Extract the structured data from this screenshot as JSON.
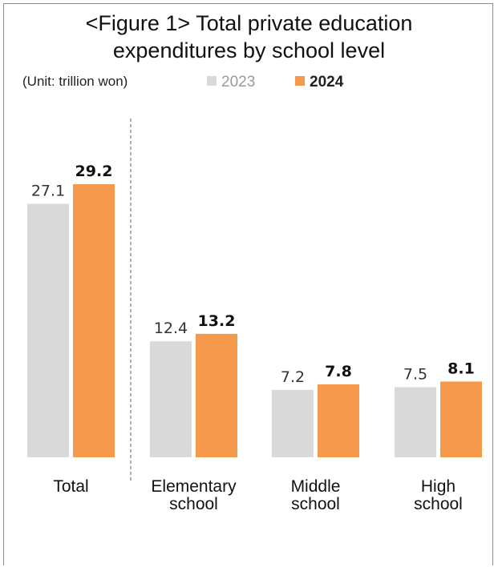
{
  "title": {
    "line1": "<Figure 1> Total private education",
    "line2": "expenditures by school level"
  },
  "unit_label": "(Unit: trillion won)",
  "legend": {
    "series_2023": "2023",
    "series_2024": "2024"
  },
  "colors": {
    "series_2023": "#d9d9d9",
    "series_2024": "#f59a4c",
    "divider": "#777777"
  },
  "chart_data": {
    "type": "bar",
    "title": "<Figure 1> Total private education expenditures by school level",
    "unit": "(Unit: trillion won)",
    "categories": [
      [
        "Total"
      ],
      [
        "Elementary",
        "school"
      ],
      [
        "Middle",
        "school"
      ],
      [
        "High",
        "school"
      ]
    ],
    "series": [
      {
        "name": "2023",
        "values": [
          27.1,
          12.4,
          7.2,
          7.5
        ]
      },
      {
        "name": "2024",
        "values": [
          29.2,
          13.2,
          7.8,
          8.1
        ]
      }
    ],
    "value_labels": {
      "2023": [
        "27.1",
        "12.4",
        "7.2",
        "7.5"
      ],
      "2024": [
        "29.2",
        "13.2",
        "7.8",
        "8.1"
      ]
    },
    "ylim": [
      0,
      29.2
    ],
    "grid": false,
    "legend_position": "top",
    "divider_after_first_category": true
  }
}
